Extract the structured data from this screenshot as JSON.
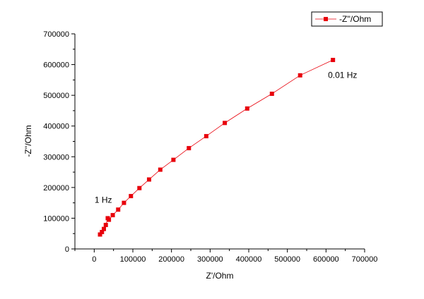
{
  "chart_data": {
    "type": "scatter",
    "xlabel": "Z'/Ohm",
    "ylabel": "-Z''/Ohm",
    "xlim": [
      -50000,
      700000
    ],
    "ylim": [
      0,
      700000
    ],
    "x_ticks": [
      0,
      100000,
      200000,
      300000,
      400000,
      500000,
      600000,
      700000
    ],
    "y_ticks": [
      0,
      100000,
      200000,
      300000,
      400000,
      500000,
      600000,
      700000
    ],
    "x_tick_labels": [
      "0",
      "100000",
      "200000",
      "300000",
      "400000",
      "500000",
      "600000",
      "700000"
    ],
    "y_tick_labels": [
      "0",
      "100000",
      "200000",
      "300000",
      "400000",
      "500000",
      "600000",
      "700000"
    ],
    "grid": false,
    "legend_position": "top-right",
    "color": "#e8000b",
    "series": [
      {
        "name": "-Z''/Ohm",
        "x": [
          15000,
          20000,
          25000,
          30000,
          35000,
          38000,
          48000,
          62000,
          77000,
          95000,
          117000,
          142000,
          171000,
          205000,
          245000,
          290000,
          338000,
          396000,
          460000,
          533000,
          618000
        ],
        "y": [
          47000,
          55000,
          65000,
          78000,
          100000,
          95000,
          110000,
          128000,
          150000,
          172000,
          198000,
          226000,
          258000,
          290000,
          328000,
          367000,
          410000,
          457000,
          505000,
          565000,
          615000
        ]
      }
    ],
    "annotations": [
      {
        "text": "1 Hz",
        "x": 1000,
        "y": 150000
      },
      {
        "text": "0.01 Hz",
        "x": 605000,
        "y": 556000
      }
    ]
  }
}
